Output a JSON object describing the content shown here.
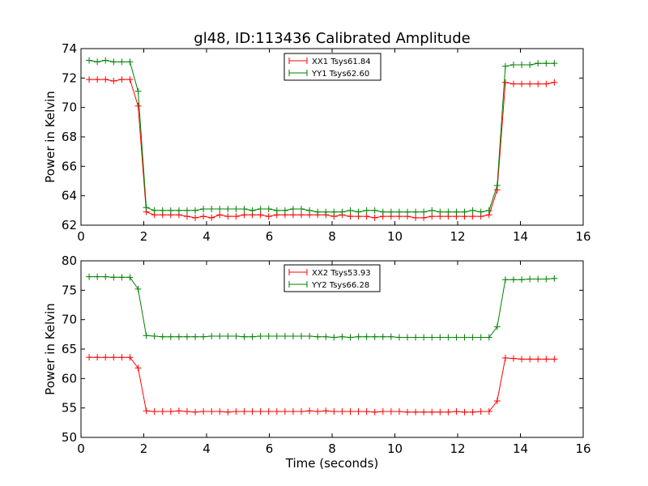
{
  "figure": {
    "title": "gl48, ID:113436 Calibrated Amplitude"
  },
  "chart_data": [
    {
      "type": "line",
      "title": "gl48, ID:113436 Calibrated Amplitude",
      "xlabel": "",
      "ylabel": "Power in Kelvin",
      "xlim": [
        0,
        16
      ],
      "ylim": [
        62,
        74
      ],
      "xticks": [
        0,
        2,
        4,
        6,
        8,
        10,
        12,
        14,
        16
      ],
      "yticks": [
        62,
        64,
        66,
        68,
        70,
        72,
        74
      ],
      "grid": false,
      "legend": "top-center",
      "series": [
        {
          "name": "XX1 Tsys61.84",
          "color": "#ff0000",
          "x": [
            0.26,
            0.52,
            0.78,
            1.04,
            1.3,
            1.56,
            1.82,
            2.08,
            2.34,
            2.6,
            2.86,
            3.12,
            3.38,
            3.64,
            3.9,
            4.16,
            4.42,
            4.68,
            4.94,
            5.2,
            5.46,
            5.72,
            5.98,
            6.24,
            6.5,
            6.76,
            7.02,
            7.28,
            7.54,
            7.8,
            8.06,
            8.32,
            8.58,
            8.84,
            9.1,
            9.36,
            9.62,
            9.88,
            10.14,
            10.4,
            10.66,
            10.92,
            11.18,
            11.44,
            11.7,
            11.96,
            12.22,
            12.48,
            12.74,
            13.0,
            13.26,
            13.52,
            13.78,
            14.04,
            14.3,
            14.56,
            14.82,
            15.08
          ],
          "values": [
            71.9,
            71.9,
            71.9,
            71.8,
            71.9,
            71.9,
            70.1,
            62.9,
            62.7,
            62.7,
            62.7,
            62.7,
            62.6,
            62.5,
            62.6,
            62.5,
            62.7,
            62.6,
            62.6,
            62.7,
            62.7,
            62.7,
            62.6,
            62.7,
            62.7,
            62.7,
            62.7,
            62.7,
            62.7,
            62.7,
            62.6,
            62.7,
            62.6,
            62.6,
            62.6,
            62.5,
            62.6,
            62.6,
            62.6,
            62.6,
            62.5,
            62.5,
            62.6,
            62.6,
            62.6,
            62.6,
            62.6,
            62.6,
            62.6,
            62.7,
            64.4,
            71.7,
            71.6,
            71.6,
            71.6,
            71.6,
            71.6,
            71.7
          ]
        },
        {
          "name": "YY1 Tsys62.60",
          "color": "#008000",
          "x": [
            0.26,
            0.52,
            0.78,
            1.04,
            1.3,
            1.56,
            1.82,
            2.08,
            2.34,
            2.6,
            2.86,
            3.12,
            3.38,
            3.64,
            3.9,
            4.16,
            4.42,
            4.68,
            4.94,
            5.2,
            5.46,
            5.72,
            5.98,
            6.24,
            6.5,
            6.76,
            7.02,
            7.28,
            7.54,
            7.8,
            8.06,
            8.32,
            8.58,
            8.84,
            9.1,
            9.36,
            9.62,
            9.88,
            10.14,
            10.4,
            10.66,
            10.92,
            11.18,
            11.44,
            11.7,
            11.96,
            12.22,
            12.48,
            12.74,
            13.0,
            13.26,
            13.52,
            13.78,
            14.04,
            14.3,
            14.56,
            14.82,
            15.08
          ],
          "values": [
            73.2,
            73.1,
            73.2,
            73.1,
            73.1,
            73.1,
            71.1,
            63.2,
            63.0,
            63.0,
            63.0,
            63.0,
            63.0,
            63.0,
            63.1,
            63.1,
            63.1,
            63.1,
            63.1,
            63.1,
            63.0,
            63.1,
            63.1,
            63.0,
            63.0,
            63.1,
            63.1,
            63.0,
            62.9,
            62.9,
            62.9,
            62.9,
            63.0,
            62.9,
            63.0,
            63.0,
            62.9,
            62.9,
            62.9,
            62.9,
            62.9,
            62.9,
            63.0,
            62.9,
            62.9,
            62.9,
            62.9,
            63.0,
            62.9,
            63.0,
            64.7,
            72.8,
            72.9,
            72.9,
            72.9,
            73.0,
            73.0,
            73.0
          ]
        }
      ]
    },
    {
      "type": "line",
      "title": "",
      "xlabel": "Time (seconds)",
      "ylabel": "Power in Kelvin",
      "xlim": [
        0,
        16
      ],
      "ylim": [
        50,
        80
      ],
      "xticks": [
        0,
        2,
        4,
        6,
        8,
        10,
        12,
        14,
        16
      ],
      "yticks": [
        50,
        55,
        60,
        65,
        70,
        75,
        80
      ],
      "grid": false,
      "legend": "top-center",
      "series": [
        {
          "name": "XX2 Tsys53.93",
          "color": "#ff0000",
          "x": [
            0.26,
            0.52,
            0.78,
            1.04,
            1.3,
            1.56,
            1.82,
            2.08,
            2.34,
            2.6,
            2.86,
            3.12,
            3.38,
            3.64,
            3.9,
            4.16,
            4.42,
            4.68,
            4.94,
            5.2,
            5.46,
            5.72,
            5.98,
            6.24,
            6.5,
            6.76,
            7.02,
            7.28,
            7.54,
            7.8,
            8.06,
            8.32,
            8.58,
            8.84,
            9.1,
            9.36,
            9.62,
            9.88,
            10.14,
            10.4,
            10.66,
            10.92,
            11.18,
            11.44,
            11.7,
            11.96,
            12.22,
            12.48,
            12.74,
            13.0,
            13.26,
            13.52,
            13.78,
            14.04,
            14.3,
            14.56,
            14.82,
            15.08
          ],
          "values": [
            63.6,
            63.6,
            63.6,
            63.6,
            63.6,
            63.6,
            61.8,
            54.5,
            54.4,
            54.4,
            54.4,
            54.5,
            54.4,
            54.3,
            54.4,
            54.4,
            54.4,
            54.3,
            54.4,
            54.4,
            54.4,
            54.4,
            54.4,
            54.4,
            54.4,
            54.4,
            54.4,
            54.5,
            54.4,
            54.5,
            54.4,
            54.4,
            54.4,
            54.4,
            54.4,
            54.3,
            54.4,
            54.4,
            54.4,
            54.3,
            54.3,
            54.3,
            54.3,
            54.3,
            54.3,
            54.4,
            54.3,
            54.3,
            54.4,
            54.4,
            56.2,
            63.5,
            63.4,
            63.3,
            63.3,
            63.3,
            63.3,
            63.3
          ]
        },
        {
          "name": "YY2 Tsys66.28",
          "color": "#008000",
          "x": [
            0.26,
            0.52,
            0.78,
            1.04,
            1.3,
            1.56,
            1.82,
            2.08,
            2.34,
            2.6,
            2.86,
            3.12,
            3.38,
            3.64,
            3.9,
            4.16,
            4.42,
            4.68,
            4.94,
            5.2,
            5.46,
            5.72,
            5.98,
            6.24,
            6.5,
            6.76,
            7.02,
            7.28,
            7.54,
            7.8,
            8.06,
            8.32,
            8.58,
            8.84,
            9.1,
            9.36,
            9.62,
            9.88,
            10.14,
            10.4,
            10.66,
            10.92,
            11.18,
            11.44,
            11.7,
            11.96,
            12.22,
            12.48,
            12.74,
            13.0,
            13.26,
            13.52,
            13.78,
            14.04,
            14.3,
            14.56,
            14.82,
            15.08
          ],
          "values": [
            77.3,
            77.3,
            77.3,
            77.2,
            77.2,
            77.2,
            75.2,
            67.3,
            67.2,
            67.1,
            67.1,
            67.1,
            67.1,
            67.1,
            67.1,
            67.2,
            67.2,
            67.2,
            67.2,
            67.1,
            67.1,
            67.2,
            67.2,
            67.2,
            67.2,
            67.2,
            67.2,
            67.2,
            67.1,
            67.1,
            67.0,
            67.1,
            67.0,
            67.1,
            67.1,
            67.1,
            67.1,
            67.1,
            67.0,
            67.0,
            67.0,
            67.0,
            67.0,
            67.0,
            67.0,
            67.0,
            67.0,
            67.0,
            67.0,
            67.0,
            68.8,
            76.8,
            76.8,
            76.8,
            76.9,
            76.9,
            76.9,
            77.0
          ]
        }
      ]
    }
  ]
}
